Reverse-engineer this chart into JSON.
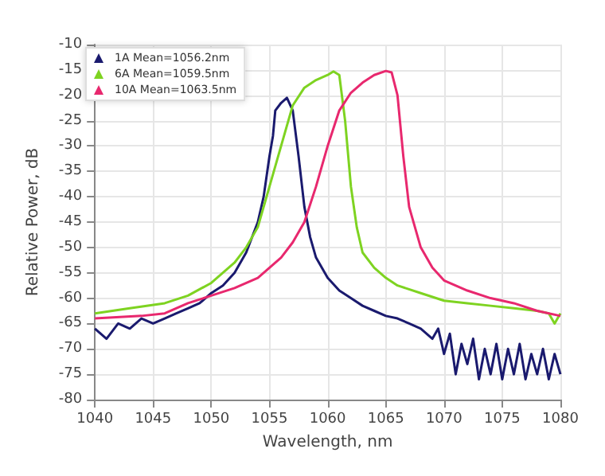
{
  "chart_data": {
    "type": "line",
    "xlabel": "Wavelength, nm",
    "ylabel": "Relative Power, dB",
    "xlim": [
      1040,
      1080
    ],
    "xticks": [
      1040,
      1045,
      1050,
      1055,
      1060,
      1065,
      1070,
      1075,
      1080
    ],
    "ylim": [
      -80,
      -10
    ],
    "yticks": [
      -80,
      -75,
      -70,
      -65,
      -60,
      -55,
      -50,
      -45,
      -40,
      -35,
      -30,
      -25,
      -20,
      -15,
      -10
    ],
    "grid": true,
    "legend": "top left",
    "marker": "none",
    "line_style": "solid",
    "series": [
      {
        "name": "1A Mean=1056.2nm",
        "color": "#1a1a6e",
        "x": [
          1040,
          1041,
          1042,
          1043,
          1044,
          1045,
          1046,
          1047,
          1048,
          1049,
          1050,
          1051,
          1052,
          1053,
          1054,
          1054.5,
          1055,
          1055.3,
          1055.5,
          1056,
          1056.5,
          1057,
          1057.5,
          1058,
          1058.5,
          1059,
          1060,
          1061,
          1062,
          1063,
          1064,
          1065,
          1066,
          1067,
          1068,
          1069,
          1069.5,
          1070,
          1070.5,
          1071,
          1071.5,
          1072,
          1072.5,
          1073,
          1073.5,
          1074,
          1074.5,
          1075,
          1075.5,
          1076,
          1076.5,
          1077,
          1077.5,
          1078,
          1078.5,
          1079,
          1079.5,
          1080
        ],
        "values": [
          -66,
          -68,
          -65,
          -66,
          -64,
          -65,
          -64,
          -63,
          -62,
          -61,
          -59,
          -57.5,
          -55,
          -51,
          -45,
          -40,
          -32,
          -28,
          -23,
          -21.5,
          -20.5,
          -23,
          -32,
          -42,
          -48,
          -52,
          -56,
          -58.5,
          -60,
          -61.5,
          -62.5,
          -63.5,
          -64,
          -65,
          -66,
          -68,
          -66,
          -71,
          -67,
          -75,
          -69,
          -73,
          -68,
          -76,
          -70,
          -75,
          -69,
          -76,
          -70,
          -75,
          -69,
          -76,
          -71,
          -75,
          -70,
          -76,
          -71,
          -75
        ]
      },
      {
        "name": "6A Mean=1059.5nm",
        "color": "#7ed321",
        "x": [
          1040,
          1043,
          1046,
          1048,
          1050,
          1052,
          1053,
          1054,
          1055,
          1056,
          1057,
          1058,
          1059,
          1060,
          1060.5,
          1061,
          1061.5,
          1062,
          1062.5,
          1063,
          1064,
          1065,
          1066,
          1068,
          1070,
          1072,
          1074,
          1076,
          1078,
          1079,
          1079.5,
          1080
        ],
        "values": [
          -63,
          -62,
          -61,
          -59.5,
          -57,
          -53,
          -50,
          -46,
          -38,
          -30,
          -22,
          -18.5,
          -17,
          -16,
          -15.3,
          -16,
          -25,
          -38,
          -46,
          -51,
          -54,
          -56,
          -57.5,
          -59,
          -60.5,
          -61,
          -61.5,
          -62,
          -62.5,
          -63,
          -65,
          -63
        ]
      },
      {
        "name": "10A Mean=1063.5nm",
        "color": "#e8286e",
        "x": [
          1040,
          1044,
          1046,
          1048,
          1050,
          1052,
          1054,
          1055,
          1056,
          1057,
          1058,
          1059,
          1060,
          1061,
          1062,
          1063,
          1064,
          1065,
          1065.5,
          1066,
          1066.5,
          1067,
          1068,
          1069,
          1070,
          1072,
          1074,
          1076,
          1078,
          1080
        ],
        "values": [
          -64,
          -63.5,
          -63,
          -61,
          -59.5,
          -58,
          -56,
          -54,
          -52,
          -49,
          -45,
          -38,
          -30,
          -23,
          -19.5,
          -17.5,
          -16,
          -15.2,
          -15.5,
          -20,
          -32,
          -42,
          -50,
          -54,
          -56.5,
          -58.5,
          -60,
          -61,
          -62.5,
          -63.5
        ]
      }
    ]
  }
}
